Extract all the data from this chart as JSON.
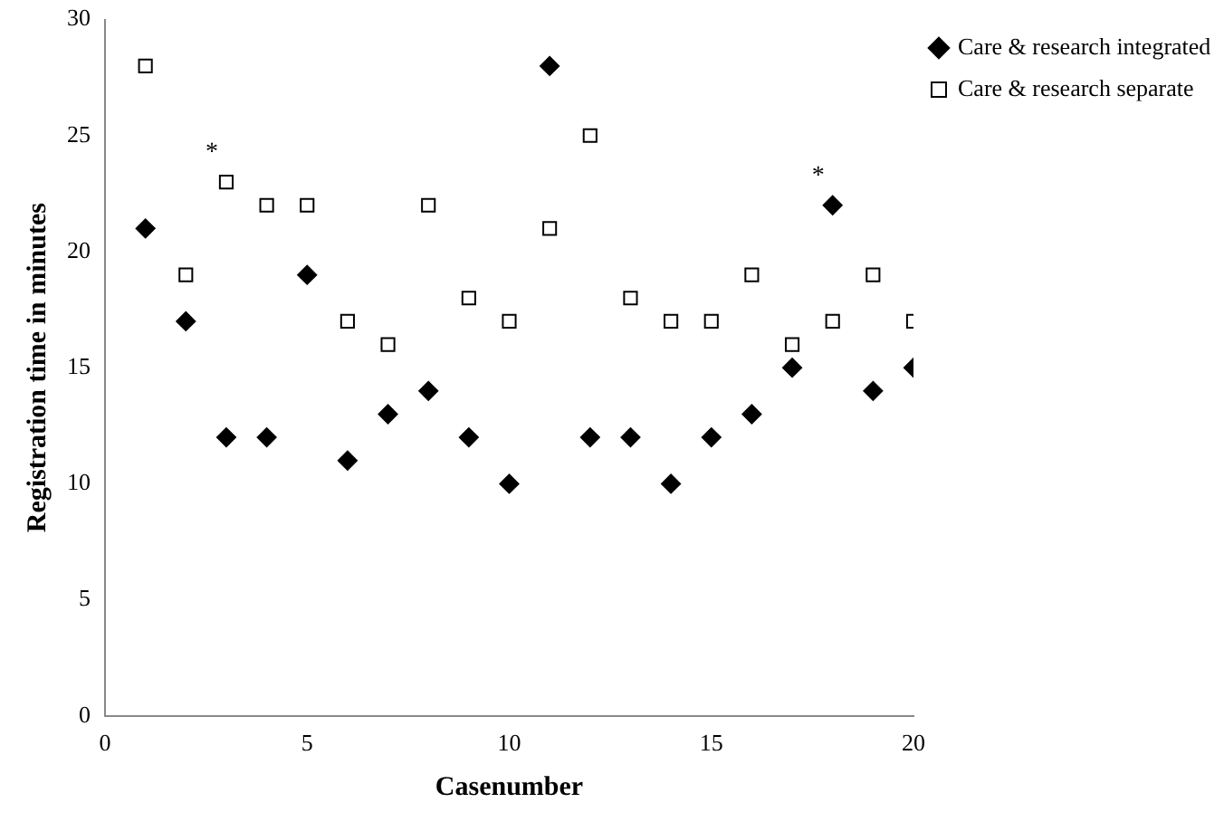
{
  "chart_data": {
    "type": "scatter",
    "xlabel": "Casenumber",
    "ylabel": "Registration time in minutes",
    "x": [
      1,
      2,
      3,
      4,
      5,
      6,
      7,
      8,
      9,
      10,
      11,
      12,
      13,
      14,
      15,
      16,
      17,
      18,
      19,
      20
    ],
    "series": [
      {
        "name": "Care & research integrated",
        "color": "#000000",
        "marker": "diamond",
        "values": [
          21,
          17,
          12,
          12,
          19,
          11,
          13,
          14,
          12,
          10,
          28,
          12,
          12,
          10,
          12,
          13,
          15,
          22,
          14,
          15
        ]
      },
      {
        "name": "Care & research separate",
        "color": "#000000",
        "marker": "square",
        "values": [
          28,
          19,
          23,
          22,
          22,
          17,
          16,
          22,
          18,
          17,
          21,
          25,
          18,
          17,
          17,
          19,
          16,
          17,
          19,
          17
        ]
      }
    ],
    "xlim": [
      0,
      20
    ],
    "xticks": [
      0,
      5,
      10,
      15,
      20
    ],
    "ylim": [
      0,
      30
    ],
    "yticks": [
      0,
      5,
      10,
      15,
      20,
      25,
      30
    ],
    "annotations": [
      {
        "text": "*",
        "x": 3,
        "y": 23
      },
      {
        "text": "*",
        "x": 18,
        "y": 22
      }
    ],
    "grid": false,
    "legend": "top right"
  }
}
